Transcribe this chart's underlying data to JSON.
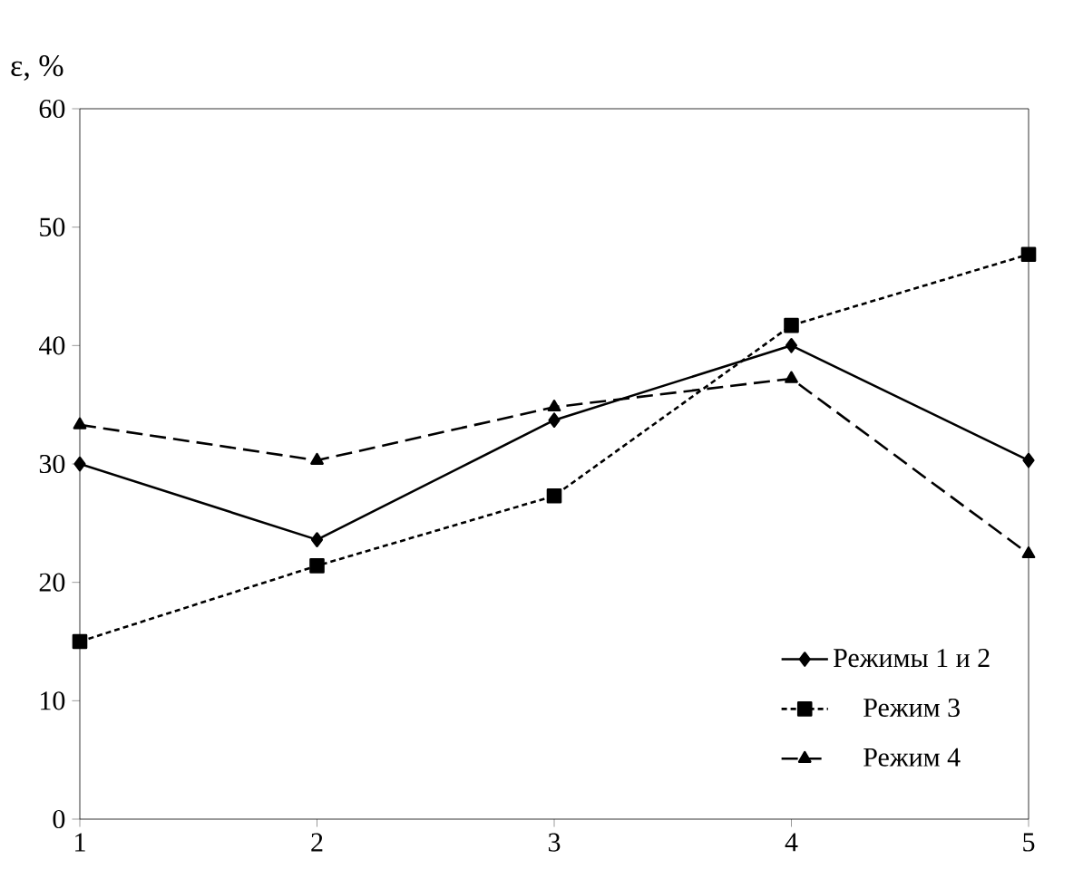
{
  "chart_data": {
    "type": "line",
    "ylabel": "ε, %",
    "x": [
      1,
      2,
      3,
      4,
      5
    ],
    "xlim": [
      1,
      5
    ],
    "xticks": [
      1,
      2,
      3,
      4,
      5
    ],
    "ylim": [
      0,
      60
    ],
    "yticks": [
      0,
      10,
      20,
      30,
      40,
      50,
      60
    ],
    "grid": false,
    "legend": "bottom right",
    "series": [
      {
        "name": "Режимы 1 и 2",
        "color": "#000000",
        "marker": "diamond",
        "line_style": "solid",
        "values": [
          30.0,
          23.6,
          33.7,
          40.0,
          30.3
        ]
      },
      {
        "name": "Режим 3",
        "color": "#000000",
        "marker": "square",
        "line_style": "dotted",
        "values": [
          15.0,
          21.4,
          27.3,
          41.7,
          47.7
        ]
      },
      {
        "name": "Режим 4",
        "color": "#000000",
        "marker": "triangle",
        "line_style": "dashed",
        "values": [
          33.3,
          30.3,
          34.8,
          37.2,
          22.4
        ]
      }
    ]
  }
}
